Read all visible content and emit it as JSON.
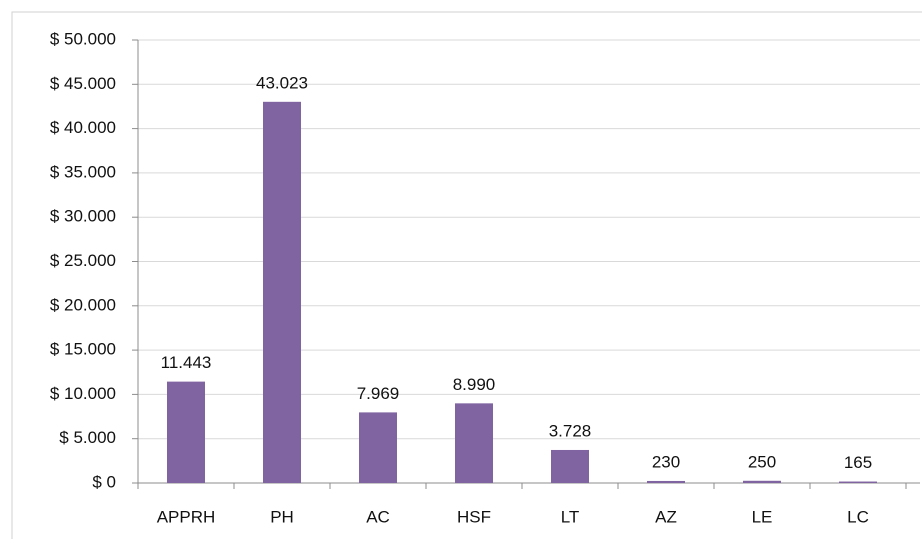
{
  "chart_data": {
    "type": "bar",
    "categories": [
      "APPRH",
      "PH",
      "AC",
      "HSF",
      "LT",
      "AZ",
      "LE",
      "LC"
    ],
    "values": [
      11443,
      43023,
      7969,
      8990,
      3728,
      230,
      250,
      165
    ],
    "value_labels": [
      "11.443",
      "43.023",
      "7.969",
      "8.990",
      "3.728",
      "230",
      "250",
      "165"
    ],
    "color": "#8064a2",
    "ylim": [
      0,
      50000
    ],
    "yticks": [
      {
        "value": 0,
        "label": "$ 0"
      },
      {
        "value": 5000,
        "label": "$ 5.000"
      },
      {
        "value": 10000,
        "label": "$ 10.000"
      },
      {
        "value": 15000,
        "label": "$ 15.000"
      },
      {
        "value": 20000,
        "label": "$ 20.000"
      },
      {
        "value": 25000,
        "label": "$ 25.000"
      },
      {
        "value": 30000,
        "label": "$ 30.000"
      },
      {
        "value": 35000,
        "label": "$ 35.000"
      },
      {
        "value": 40000,
        "label": "$ 40.000"
      },
      {
        "value": 45000,
        "label": "$ 45.000"
      },
      {
        "value": 50000,
        "label": "$ 50.000"
      }
    ],
    "grid": true
  }
}
